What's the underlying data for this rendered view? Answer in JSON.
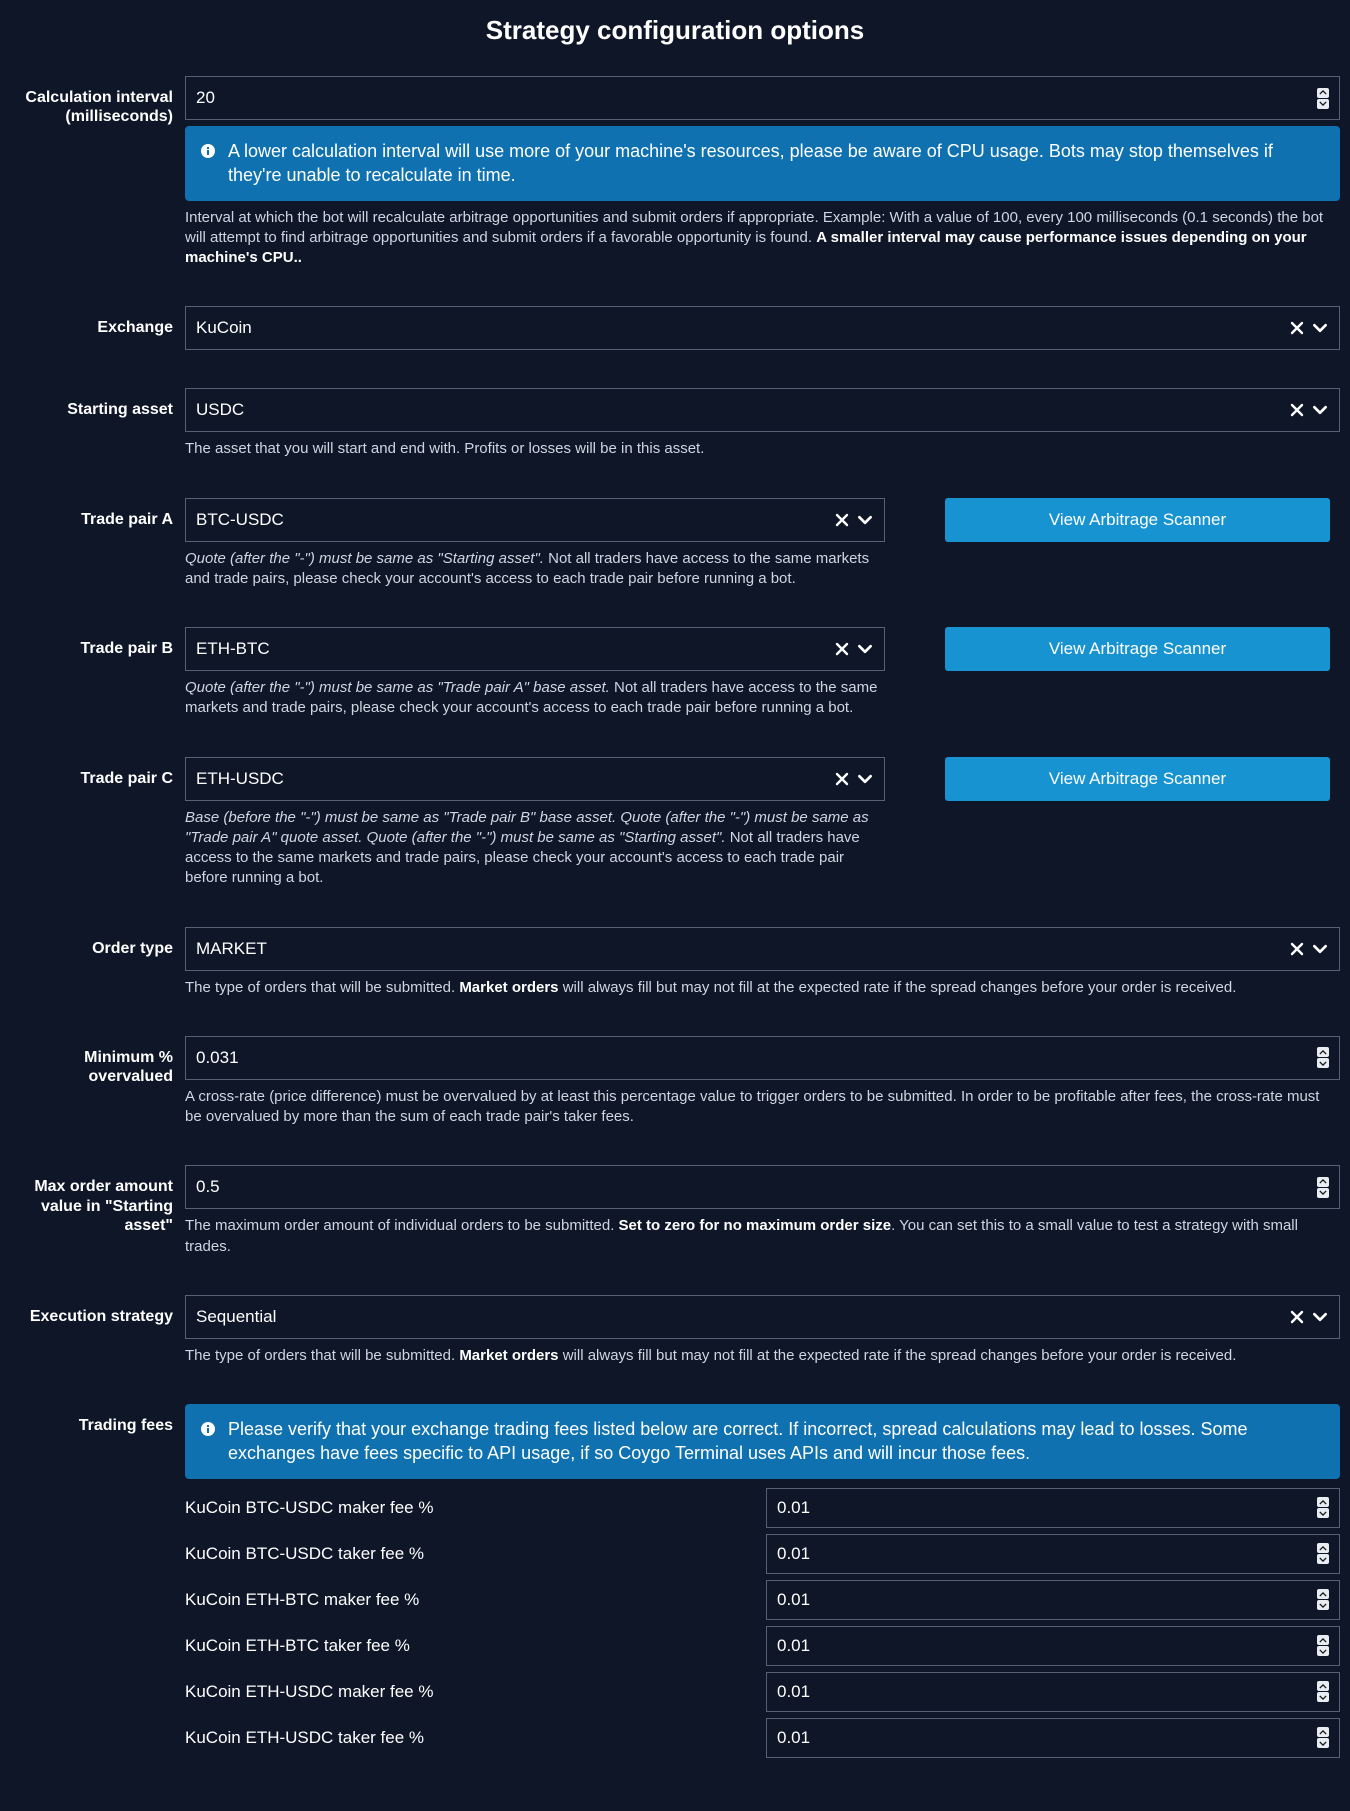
{
  "title": "Strategy configuration options",
  "colors": {
    "background": "#0e1628",
    "input_border": "#566273",
    "info_box_bg": "#0f71b0",
    "button_bg": "#1893d1",
    "help_text": "#cfd6e0",
    "spinner_bg": "#e9ecf1",
    "text": "#ffffff"
  },
  "calc_interval": {
    "label": "Calculation interval (milliseconds)",
    "value": "20",
    "info": "A lower calculation interval will use more of your machine's resources, please be aware of CPU usage. Bots may stop themselves if they're unable to recalculate in time.",
    "help_plain": "Interval at which the bot will recalculate arbitrage opportunities and submit orders if appropriate. Example: With a value of 100, every 100 milliseconds (0.1 seconds) the bot will attempt to find arbitrage opportunities and submit orders if a favorable opportunity is found. ",
    "help_bold": "A smaller interval may cause performance issues depending on your machine's CPU.."
  },
  "exchange": {
    "label": "Exchange",
    "value": "KuCoin"
  },
  "starting_asset": {
    "label": "Starting asset",
    "value": "USDC",
    "help": "The asset that you will start and end with. Profits or losses will be in this asset."
  },
  "scanner_button": "View Arbitrage Scanner",
  "pair_a": {
    "label": "Trade pair A",
    "value": "BTC-USDC",
    "help_italic": "Quote (after the \"-\") must be same as \"Starting asset\".",
    "help_rest": " Not all traders have access to the same markets and trade pairs, please check your account's access to each trade pair before running a bot."
  },
  "pair_b": {
    "label": "Trade pair B",
    "value": "ETH-BTC",
    "help_italic": "Quote (after the \"-\") must be same as \"Trade pair A\" base asset.",
    "help_rest": " Not all traders have access to the same markets and trade pairs, please check your account's access to each trade pair before running a bot."
  },
  "pair_c": {
    "label": "Trade pair C",
    "value": "ETH-USDC",
    "help_italic": "Base (before the \"-\") must be same as \"Trade pair B\" base asset. Quote (after the \"-\") must be same as \"Trade pair A\" quote asset. Quote (after the \"-\") must be same as \"Starting asset\".",
    "help_rest": " Not all traders have access to the same markets and trade pairs, please check your account's access to each trade pair before running a bot."
  },
  "order_type": {
    "label": "Order type",
    "value": "MARKET",
    "help_pre": "The type of orders that will be submitted. ",
    "help_bold": "Market orders",
    "help_post": " will always fill but may not fill at the expected rate if the spread changes before your order is received."
  },
  "min_overvalued": {
    "label": "Minimum % overvalued",
    "value": "0.031",
    "help": "A cross-rate (price difference) must be overvalued by at least this percentage value to trigger orders to be submitted. In order to be profitable after fees, the cross-rate must be overvalued by more than the sum of each trade pair's taker fees."
  },
  "max_order": {
    "label": "Max order amount value in \"Starting asset\"",
    "value": "0.5",
    "help_pre": "The maximum order amount of individual orders to be submitted. ",
    "help_bold": "Set to zero for no maximum order size",
    "help_post": ". You can set this to a small value to test a strategy with small trades."
  },
  "exec_strategy": {
    "label": "Execution strategy",
    "value": "Sequential",
    "help_pre": "The type of orders that will be submitted. ",
    "help_bold": "Market orders",
    "help_post": " will always fill but may not fill at the expected rate if the spread changes before your order is received."
  },
  "trading_fees": {
    "label": "Trading fees",
    "info": "Please verify that your exchange trading fees listed below are correct. If incorrect, spread calculations may lead to losses. Some exchanges have fees specific to API usage, if so Coygo Terminal uses APIs and will incur those fees.",
    "rows": [
      {
        "label": "KuCoin BTC-USDC maker fee %",
        "value": "0.01"
      },
      {
        "label": "KuCoin BTC-USDC taker fee %",
        "value": "0.01"
      },
      {
        "label": "KuCoin ETH-BTC maker fee %",
        "value": "0.01"
      },
      {
        "label": "KuCoin ETH-BTC taker fee %",
        "value": "0.01"
      },
      {
        "label": "KuCoin ETH-USDC maker fee %",
        "value": "0.01"
      },
      {
        "label": "KuCoin ETH-USDC taker fee %",
        "value": "0.01"
      }
    ]
  }
}
